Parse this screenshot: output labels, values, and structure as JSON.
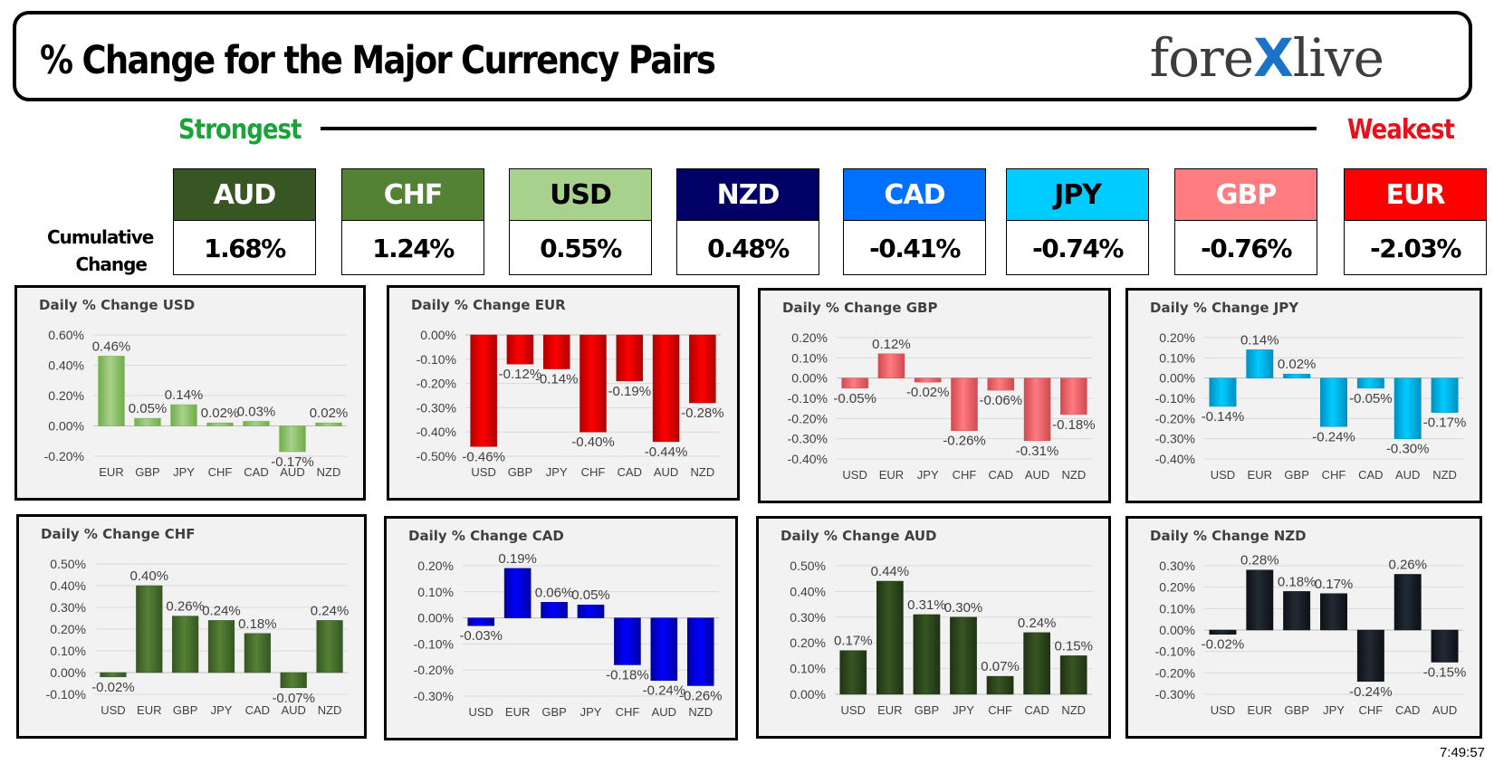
{
  "header": {
    "title": "% Change for the Major Currency Pairs",
    "logo_prefix": "fore",
    "logo_x": "X",
    "logo_suffix": "live"
  },
  "strength": {
    "strongest_label": "Strongest",
    "weakest_label": "Weakest",
    "cumulative_label_line1": "Cumulative",
    "cumulative_label_line2": "Change",
    "currencies": [
      {
        "code": "AUD",
        "value": "1.68%",
        "bg": "#375623",
        "fg": "#ffffff"
      },
      {
        "code": "CHF",
        "value": "1.24%",
        "bg": "#548235",
        "fg": "#ffffff"
      },
      {
        "code": "USD",
        "value": "0.55%",
        "bg": "#a9d18e",
        "fg": "#000000"
      },
      {
        "code": "NZD",
        "value": "0.48%",
        "bg": "#000066",
        "fg": "#ffffff"
      },
      {
        "code": "CAD",
        "value": "-0.41%",
        "bg": "#0070ff",
        "fg": "#ffffff"
      },
      {
        "code": "JPY",
        "value": "-0.74%",
        "bg": "#00ccff",
        "fg": "#000000"
      },
      {
        "code": "GBP",
        "value": "-0.76%",
        "bg": "#ff7c80",
        "fg": "#ffffff"
      },
      {
        "code": "EUR",
        "value": "-2.03%",
        "bg": "#ff0000",
        "fg": "#ffffff"
      }
    ]
  },
  "timestamp": "7:49:57",
  "chart_data": [
    {
      "type": "bar",
      "title": "Daily % Change USD",
      "categories": [
        "EUR",
        "GBP",
        "JPY",
        "CHF",
        "CAD",
        "AUD",
        "NZD"
      ],
      "values": [
        0.46,
        0.05,
        0.14,
        0.02,
        0.03,
        -0.17,
        0.02
      ],
      "labels": [
        "0.46%",
        "0.05%",
        "0.14%",
        "0.02%",
        "0.03%",
        "-0.17%",
        "0.02%"
      ],
      "ylim": [
        -0.2,
        0.6
      ],
      "yticks": [
        0.6,
        0.4,
        0.2,
        0.0,
        -0.2
      ],
      "ytick_labels": [
        "0.60%",
        "0.40%",
        "0.20%",
        "0.00%",
        "-0.20%"
      ],
      "color": "#a9d18e",
      "color_dark": "#70ad47"
    },
    {
      "type": "bar",
      "title": "Daily % Change EUR",
      "categories": [
        "USD",
        "GBP",
        "JPY",
        "CHF",
        "CAD",
        "AUD",
        "NZD"
      ],
      "values": [
        -0.46,
        -0.12,
        -0.14,
        -0.4,
        -0.19,
        -0.44,
        -0.28
      ],
      "labels": [
        "-0.46%",
        "-0.12%",
        "-0.14%",
        "-0.40%",
        "-0.19%",
        "-0.44%",
        "-0.28%"
      ],
      "ylim": [
        -0.5,
        0.0
      ],
      "yticks": [
        0.0,
        -0.1,
        -0.2,
        -0.3,
        -0.4,
        -0.5
      ],
      "ytick_labels": [
        "0.00%",
        "-0.10%",
        "-0.20%",
        "-0.30%",
        "-0.40%",
        "-0.50%"
      ],
      "color": "#ff0000",
      "color_dark": "#b00000"
    },
    {
      "type": "bar",
      "title": "Daily % Change GBP",
      "categories": [
        "USD",
        "EUR",
        "JPY",
        "CHF",
        "CAD",
        "AUD",
        "NZD"
      ],
      "values": [
        -0.05,
        0.12,
        -0.02,
        -0.26,
        -0.06,
        -0.31,
        -0.18
      ],
      "labels": [
        "-0.05%",
        "0.12%",
        "-0.02%",
        "-0.26%",
        "-0.06%",
        "-0.31%",
        "-0.18%"
      ],
      "ylim": [
        -0.4,
        0.2
      ],
      "yticks": [
        0.2,
        0.1,
        0.0,
        -0.1,
        -0.2,
        -0.3,
        -0.4
      ],
      "ytick_labels": [
        "0.20%",
        "0.10%",
        "0.00%",
        "-0.10%",
        "-0.20%",
        "-0.30%",
        "-0.40%"
      ],
      "color": "#ff7c80",
      "color_dark": "#d04a50"
    },
    {
      "type": "bar",
      "title": "Daily % Change JPY",
      "categories": [
        "USD",
        "EUR",
        "GBP",
        "CHF",
        "CAD",
        "AUD",
        "NZD"
      ],
      "values": [
        -0.14,
        0.14,
        0.02,
        -0.24,
        -0.05,
        -0.3,
        -0.17
      ],
      "labels": [
        "-0.14%",
        "0.14%",
        "0.02%",
        "-0.24%",
        "-0.05%",
        "-0.30%",
        "-0.17%"
      ],
      "ylim": [
        -0.4,
        0.2
      ],
      "yticks": [
        0.2,
        0.1,
        0.0,
        -0.1,
        -0.2,
        -0.3,
        -0.4
      ],
      "ytick_labels": [
        "0.20%",
        "0.10%",
        "0.00%",
        "-0.10%",
        "-0.20%",
        "-0.30%",
        "-0.40%"
      ],
      "color": "#00ccff",
      "color_dark": "#0090c0"
    },
    {
      "type": "bar",
      "title": "Daily % Change CHF",
      "categories": [
        "USD",
        "EUR",
        "GBP",
        "JPY",
        "CAD",
        "AUD",
        "NZD"
      ],
      "values": [
        -0.02,
        0.4,
        0.26,
        0.24,
        0.18,
        -0.07,
        0.24
      ],
      "labels": [
        "-0.02%",
        "0.40%",
        "0.26%",
        "0.24%",
        "0.18%",
        "-0.07%",
        "0.24%"
      ],
      "ylim": [
        -0.1,
        0.5
      ],
      "yticks": [
        0.5,
        0.4,
        0.3,
        0.2,
        0.1,
        0.0,
        -0.1
      ],
      "ytick_labels": [
        "0.50%",
        "0.40%",
        "0.30%",
        "0.20%",
        "0.10%",
        "0.00%",
        "-0.10%"
      ],
      "color": "#548235",
      "color_dark": "#375623"
    },
    {
      "type": "bar",
      "title": "Daily % Change CAD",
      "categories": [
        "USD",
        "EUR",
        "GBP",
        "JPY",
        "CHF",
        "AUD",
        "NZD"
      ],
      "values": [
        -0.03,
        0.19,
        0.06,
        0.05,
        -0.18,
        -0.24,
        -0.26
      ],
      "labels": [
        "-0.03%",
        "0.19%",
        "0.06%",
        "0.05%",
        "-0.18%",
        "-0.24%",
        "-0.26%"
      ],
      "ylim": [
        -0.3,
        0.2
      ],
      "yticks": [
        0.2,
        0.1,
        0.0,
        -0.1,
        -0.2,
        -0.3
      ],
      "ytick_labels": [
        "0.20%",
        "0.10%",
        "0.00%",
        "-0.10%",
        "-0.20%",
        "-0.30%"
      ],
      "color": "#0000ff",
      "color_dark": "#0000a0"
    },
    {
      "type": "bar",
      "title": "Daily % Change AUD",
      "categories": [
        "USD",
        "EUR",
        "GBP",
        "JPY",
        "CHF",
        "CAD",
        "NZD"
      ],
      "values": [
        0.17,
        0.44,
        0.31,
        0.3,
        0.07,
        0.24,
        0.15
      ],
      "labels": [
        "0.17%",
        "0.44%",
        "0.31%",
        "0.30%",
        "0.07%",
        "0.24%",
        "0.15%"
      ],
      "ylim": [
        0.0,
        0.5
      ],
      "yticks": [
        0.5,
        0.4,
        0.3,
        0.2,
        0.1,
        0.0
      ],
      "ytick_labels": [
        "0.50%",
        "0.40%",
        "0.30%",
        "0.20%",
        "0.10%",
        "0.00%"
      ],
      "color": "#375623",
      "color_dark": "#1f3314"
    },
    {
      "type": "bar",
      "title": "Daily % Change NZD",
      "categories": [
        "USD",
        "EUR",
        "GBP",
        "JPY",
        "CHF",
        "CAD",
        "AUD"
      ],
      "values": [
        -0.02,
        0.28,
        0.18,
        0.17,
        -0.24,
        0.26,
        -0.15
      ],
      "labels": [
        "-0.02%",
        "0.28%",
        "0.18%",
        "0.17%",
        "-0.24%",
        "0.26%",
        "-0.15%"
      ],
      "ylim": [
        -0.3,
        0.3
      ],
      "yticks": [
        0.3,
        0.2,
        0.1,
        0.0,
        -0.1,
        -0.2,
        -0.3
      ],
      "ytick_labels": [
        "0.30%",
        "0.20%",
        "0.10%",
        "0.00%",
        "-0.10%",
        "-0.20%",
        "-0.30%"
      ],
      "color": "#222a35",
      "color_dark": "#0d1117"
    }
  ]
}
